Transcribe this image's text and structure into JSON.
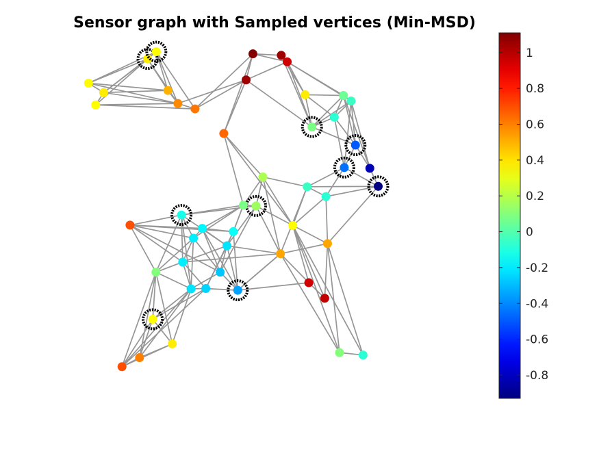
{
  "chart_data": {
    "type": "scatter",
    "title": "Sensor graph with Sampled vertices (Min-MSD)",
    "xlabel": "",
    "ylabel": "",
    "colorbar": {
      "colormap": "jet",
      "clim": [
        -0.93,
        1.11
      ],
      "tick_values": [
        1,
        0.8,
        0.6,
        0.4,
        0.2,
        0,
        -0.2,
        -0.4,
        -0.6,
        -0.8
      ],
      "tick_labels": [
        "1",
        "0.8",
        "0.6",
        "0.4",
        "0.2",
        "0",
        "-0.2",
        "-0.4",
        "-0.6",
        "-0.8"
      ]
    },
    "xlim": [
      0,
      1
    ],
    "ylim": [
      0,
      1
    ],
    "nodes": [
      {
        "id": 0,
        "x": 0.181,
        "y": 0.928,
        "value": 0.38,
        "sampled": true
      },
      {
        "id": 1,
        "x": 0.203,
        "y": 0.948,
        "value": 0.35,
        "sampled": true
      },
      {
        "id": 2,
        "x": 0.033,
        "y": 0.861,
        "value": 0.35,
        "sampled": false
      },
      {
        "id": 3,
        "x": 0.071,
        "y": 0.835,
        "value": 0.38,
        "sampled": false
      },
      {
        "id": 4,
        "x": 0.051,
        "y": 0.801,
        "value": 0.35,
        "sampled": false
      },
      {
        "id": 5,
        "x": 0.232,
        "y": 0.841,
        "value": 0.5,
        "sampled": false
      },
      {
        "id": 6,
        "x": 0.257,
        "y": 0.805,
        "value": 0.58,
        "sampled": false
      },
      {
        "id": 7,
        "x": 0.3,
        "y": 0.79,
        "value": 0.62,
        "sampled": false
      },
      {
        "id": 8,
        "x": 0.445,
        "y": 0.942,
        "value": 1.1,
        "sampled": false
      },
      {
        "id": 9,
        "x": 0.428,
        "y": 0.87,
        "value": 1.05,
        "sampled": false
      },
      {
        "id": 10,
        "x": 0.372,
        "y": 0.722,
        "value": 0.65,
        "sampled": false
      },
      {
        "id": 11,
        "x": 0.516,
        "y": 0.938,
        "value": 1.05,
        "sampled": false
      },
      {
        "id": 12,
        "x": 0.531,
        "y": 0.92,
        "value": 0.95,
        "sampled": false
      },
      {
        "id": 13,
        "x": 0.576,
        "y": 0.829,
        "value": 0.38,
        "sampled": false
      },
      {
        "id": 14,
        "x": 0.593,
        "y": 0.74,
        "value": 0.08,
        "sampled": true
      },
      {
        "id": 15,
        "x": 0.649,
        "y": 0.767,
        "value": -0.08,
        "sampled": false
      },
      {
        "id": 16,
        "x": 0.672,
        "y": 0.827,
        "value": 0.05,
        "sampled": false
      },
      {
        "id": 17,
        "x": 0.691,
        "y": 0.812,
        "value": -0.05,
        "sampled": false
      },
      {
        "id": 18,
        "x": 0.702,
        "y": 0.69,
        "value": -0.5,
        "sampled": true
      },
      {
        "id": 19,
        "x": 0.674,
        "y": 0.628,
        "value": -0.45,
        "sampled": true
      },
      {
        "id": 20,
        "x": 0.738,
        "y": 0.626,
        "value": -0.82,
        "sampled": false
      },
      {
        "id": 21,
        "x": 0.759,
        "y": 0.576,
        "value": -0.93,
        "sampled": true
      },
      {
        "id": 22,
        "x": 0.581,
        "y": 0.575,
        "value": -0.05,
        "sampled": false
      },
      {
        "id": 23,
        "x": 0.628,
        "y": 0.548,
        "value": -0.08,
        "sampled": false
      },
      {
        "id": 24,
        "x": 0.47,
        "y": 0.602,
        "value": 0.18,
        "sampled": false
      },
      {
        "id": 25,
        "x": 0.453,
        "y": 0.522,
        "value": 0.15,
        "sampled": true
      },
      {
        "id": 26,
        "x": 0.421,
        "y": 0.524,
        "value": 0.08,
        "sampled": false
      },
      {
        "id": 27,
        "x": 0.545,
        "y": 0.468,
        "value": 0.35,
        "sampled": false
      },
      {
        "id": 28,
        "x": 0.632,
        "y": 0.418,
        "value": 0.52,
        "sampled": false
      },
      {
        "id": 29,
        "x": 0.514,
        "y": 0.39,
        "value": 0.52,
        "sampled": false
      },
      {
        "id": 30,
        "x": 0.266,
        "y": 0.497,
        "value": -0.12,
        "sampled": true
      },
      {
        "id": 31,
        "x": 0.137,
        "y": 0.469,
        "value": 0.7,
        "sampled": false
      },
      {
        "id": 32,
        "x": 0.318,
        "y": 0.46,
        "value": -0.18,
        "sampled": false
      },
      {
        "id": 33,
        "x": 0.296,
        "y": 0.433,
        "value": -0.2,
        "sampled": false
      },
      {
        "id": 34,
        "x": 0.396,
        "y": 0.451,
        "value": -0.15,
        "sampled": false
      },
      {
        "id": 35,
        "x": 0.38,
        "y": 0.412,
        "value": -0.22,
        "sampled": false
      },
      {
        "id": 36,
        "x": 0.269,
        "y": 0.367,
        "value": -0.2,
        "sampled": false
      },
      {
        "id": 37,
        "x": 0.202,
        "y": 0.339,
        "value": 0.1,
        "sampled": false
      },
      {
        "id": 38,
        "x": 0.363,
        "y": 0.339,
        "value": -0.28,
        "sampled": false
      },
      {
        "id": 39,
        "x": 0.29,
        "y": 0.293,
        "value": -0.22,
        "sampled": false
      },
      {
        "id": 40,
        "x": 0.327,
        "y": 0.294,
        "value": -0.25,
        "sampled": false
      },
      {
        "id": 41,
        "x": 0.407,
        "y": 0.289,
        "value": -0.35,
        "sampled": true
      },
      {
        "id": 42,
        "x": 0.585,
        "y": 0.31,
        "value": 0.95,
        "sampled": false
      },
      {
        "id": 43,
        "x": 0.625,
        "y": 0.267,
        "value": 0.98,
        "sampled": false
      },
      {
        "id": 44,
        "x": 0.194,
        "y": 0.209,
        "value": 0.35,
        "sampled": true
      },
      {
        "id": 45,
        "x": 0.243,
        "y": 0.141,
        "value": 0.38,
        "sampled": false
      },
      {
        "id": 46,
        "x": 0.161,
        "y": 0.103,
        "value": 0.6,
        "sampled": false
      },
      {
        "id": 47,
        "x": 0.117,
        "y": 0.078,
        "value": 0.7,
        "sampled": false
      },
      {
        "id": 48,
        "x": 0.662,
        "y": 0.117,
        "value": 0.1,
        "sampled": false
      },
      {
        "id": 49,
        "x": 0.721,
        "y": 0.11,
        "value": -0.08,
        "sampled": false
      }
    ],
    "edges": [
      [
        0,
        1
      ],
      [
        0,
        2
      ],
      [
        0,
        3
      ],
      [
        0,
        4
      ],
      [
        0,
        5
      ],
      [
        0,
        6
      ],
      [
        1,
        2
      ],
      [
        1,
        3
      ],
      [
        1,
        5
      ],
      [
        1,
        6
      ],
      [
        1,
        7
      ],
      [
        2,
        3
      ],
      [
        2,
        5
      ],
      [
        2,
        6
      ],
      [
        3,
        4
      ],
      [
        3,
        5
      ],
      [
        3,
        6
      ],
      [
        4,
        6
      ],
      [
        4,
        7
      ],
      [
        5,
        6
      ],
      [
        6,
        7
      ],
      [
        7,
        9
      ],
      [
        6,
        9
      ],
      [
        8,
        9
      ],
      [
        8,
        10
      ],
      [
        8,
        11
      ],
      [
        8,
        12
      ],
      [
        8,
        7
      ],
      [
        9,
        10
      ],
      [
        9,
        12
      ],
      [
        9,
        14
      ],
      [
        11,
        12
      ],
      [
        11,
        13
      ],
      [
        11,
        14
      ],
      [
        12,
        13
      ],
      [
        12,
        16
      ],
      [
        12,
        17
      ],
      [
        12,
        14
      ],
      [
        13,
        14
      ],
      [
        13,
        15
      ],
      [
        13,
        16
      ],
      [
        14,
        15
      ],
      [
        14,
        16
      ],
      [
        14,
        17
      ],
      [
        14,
        18
      ],
      [
        15,
        16
      ],
      [
        15,
        17
      ],
      [
        15,
        18
      ],
      [
        15,
        19
      ],
      [
        16,
        17
      ],
      [
        16,
        18
      ],
      [
        16,
        20
      ],
      [
        17,
        18
      ],
      [
        17,
        20
      ],
      [
        17,
        19
      ],
      [
        18,
        19
      ],
      [
        18,
        20
      ],
      [
        19,
        21
      ],
      [
        20,
        21
      ],
      [
        19,
        22
      ],
      [
        19,
        23
      ],
      [
        21,
        23
      ],
      [
        21,
        22
      ],
      [
        21,
        28
      ],
      [
        10,
        24
      ],
      [
        10,
        26
      ],
      [
        10,
        27
      ],
      [
        24,
        22
      ],
      [
        24,
        25
      ],
      [
        24,
        26
      ],
      [
        24,
        27
      ],
      [
        25,
        26
      ],
      [
        25,
        30
      ],
      [
        25,
        35
      ],
      [
        25,
        29
      ],
      [
        25,
        27
      ],
      [
        25,
        38
      ],
      [
        26,
        32
      ],
      [
        26,
        33
      ],
      [
        26,
        30
      ],
      [
        26,
        34
      ],
      [
        22,
        23
      ],
      [
        22,
        27
      ],
      [
        22,
        29
      ],
      [
        23,
        27
      ],
      [
        23,
        28
      ],
      [
        27,
        28
      ],
      [
        27,
        42
      ],
      [
        27,
        43
      ],
      [
        27,
        48
      ],
      [
        27,
        49
      ],
      [
        29,
        35
      ],
      [
        29,
        36
      ],
      [
        29,
        41
      ],
      [
        29,
        42
      ],
      [
        29,
        28
      ],
      [
        29,
        48
      ],
      [
        28,
        43
      ],
      [
        28,
        48
      ],
      [
        28,
        49
      ],
      [
        42,
        41
      ],
      [
        30,
        31
      ],
      [
        30,
        33
      ],
      [
        30,
        36
      ],
      [
        30,
        37
      ],
      [
        30,
        35
      ],
      [
        30,
        39
      ],
      [
        31,
        32
      ],
      [
        31,
        33
      ],
      [
        31,
        34
      ],
      [
        31,
        36
      ],
      [
        31,
        37
      ],
      [
        31,
        38
      ],
      [
        32,
        33
      ],
      [
        32,
        34
      ],
      [
        32,
        35
      ],
      [
        32,
        38
      ],
      [
        32,
        41
      ],
      [
        33,
        36
      ],
      [
        33,
        37
      ],
      [
        33,
        38
      ],
      [
        33,
        39
      ],
      [
        34,
        35
      ],
      [
        34,
        40
      ],
      [
        34,
        41
      ],
      [
        34,
        26
      ],
      [
        35,
        38
      ],
      [
        35,
        40
      ],
      [
        35,
        41
      ],
      [
        35,
        36
      ],
      [
        36,
        37
      ],
      [
        36,
        39
      ],
      [
        36,
        40
      ],
      [
        37,
        39
      ],
      [
        37,
        44
      ],
      [
        37,
        45
      ],
      [
        37,
        46
      ],
      [
        37,
        47
      ],
      [
        38,
        39
      ],
      [
        38,
        41
      ],
      [
        39,
        40
      ],
      [
        39,
        44
      ],
      [
        39,
        46
      ],
      [
        39,
        47
      ],
      [
        39,
        45
      ],
      [
        40,
        41
      ],
      [
        40,
        44
      ],
      [
        40,
        47
      ],
      [
        44,
        45
      ],
      [
        44,
        46
      ],
      [
        44,
        47
      ],
      [
        45,
        46
      ],
      [
        45,
        47
      ],
      [
        46,
        47
      ],
      [
        48,
        49
      ],
      [
        42,
        43
      ],
      [
        41,
        29
      ],
      [
        24,
        29
      ]
    ]
  }
}
